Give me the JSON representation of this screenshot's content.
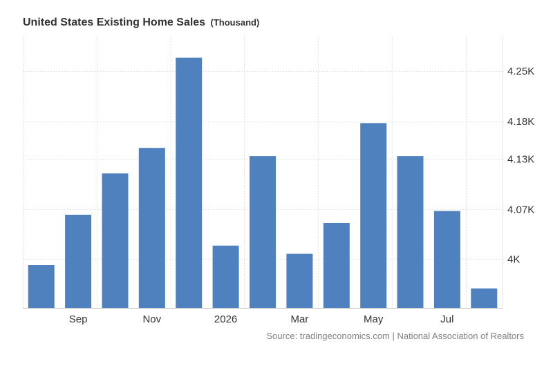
{
  "chart_data": {
    "type": "bar",
    "title": "United States Existing Home Sales",
    "unit": "(Thousand)",
    "categories": [
      "Aug 2025",
      "Sep 2025",
      "Oct 2025",
      "Nov 2025",
      "Dec 2025",
      "Jan 2026",
      "Feb 2026",
      "Mar 2026",
      "Apr 2026",
      "May 2026",
      "Jun 2026",
      "Jul 2026",
      "Aug 2026"
    ],
    "values": [
      3992,
      4059,
      4114,
      4148,
      4268,
      4018,
      4137,
      4007,
      4048,
      4181,
      4137,
      4064,
      3961
    ],
    "ylim": [
      3935,
      4297
    ],
    "ytick_values": [
      4000,
      4066,
      4133,
      4183,
      4250
    ],
    "ytick_labels": [
      "4K",
      "4.07K",
      "4.13K",
      "4.18K",
      "4.25K"
    ],
    "xtick_labels": [
      {
        "category": "Sep 2025",
        "label": "Sep"
      },
      {
        "category": "Nov 2025",
        "label": "Nov"
      },
      {
        "category": "Jan 2026",
        "label": "2026"
      },
      {
        "category": "Mar 2026",
        "label": "Mar"
      },
      {
        "category": "May 2026",
        "label": "May"
      },
      {
        "category": "Jul 2026",
        "label": "Jul"
      }
    ],
    "bar_color": "#4e81bd",
    "grid": true,
    "xlabel": "",
    "ylabel": "",
    "source": "Source: tradingeconomics.com | National Association of Realtors"
  }
}
